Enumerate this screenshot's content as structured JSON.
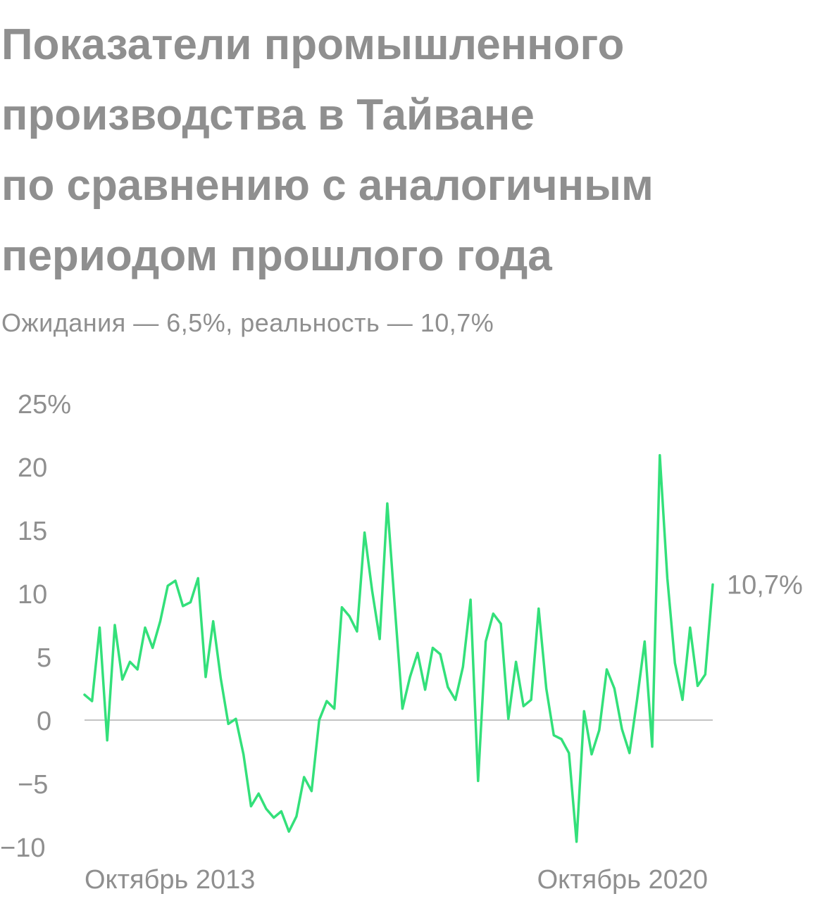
{
  "header": {
    "title_lines": [
      "Показатели промышленного",
      "производства в Тайване",
      "по сравнению с аналогичным",
      "периодом прошлого года"
    ],
    "subtitle": "Ожидания — 6,5%, реальность — 10,7%"
  },
  "colors": {
    "line": "#33e07a",
    "text": "#8f8f8f",
    "zero_line": "#c4c4c4"
  },
  "chart_data": {
    "type": "line",
    "title": "Показатели промышленного производства в Тайване по сравнению с аналогичным периодом прошлого года",
    "subtitle": "Ожидания — 6,5%, реальность — 10,7%",
    "xlabel": "",
    "ylabel": "",
    "ylim": [
      -10,
      25
    ],
    "yticks": [
      25,
      20,
      15,
      10,
      5,
      0,
      -5,
      -10
    ],
    "ytick_labels": [
      "25%",
      "20",
      "15",
      "10",
      "5",
      "0",
      "−5",
      "−10"
    ],
    "x_tick_labels": [
      "Октябрь 2013",
      "Октябрь 2020"
    ],
    "grid": false,
    "zero_line": true,
    "end_label": "10,7%",
    "series": [
      {
        "values": [
          2.0,
          1.5,
          7.3,
          -1.6,
          7.5,
          3.2,
          4.6,
          4.0,
          7.3,
          5.7,
          7.8,
          10.6,
          11.0,
          9.0,
          9.3,
          11.2,
          3.4,
          7.8,
          3.3,
          -0.3,
          0.1,
          -2.7,
          -6.8,
          -5.8,
          -7.0,
          -7.7,
          -7.2,
          -8.8,
          -7.6,
          -4.5,
          -5.6,
          0.0,
          1.5,
          0.9,
          8.9,
          8.2,
          7.0,
          14.8,
          10.2,
          6.4,
          17.1,
          8.9,
          0.9,
          3.4,
          5.3,
          2.4,
          5.7,
          5.2,
          2.6,
          1.6,
          4.2,
          9.5,
          -4.8,
          6.2,
          8.4,
          7.6,
          0.1,
          4.6,
          1.1,
          1.6,
          8.8,
          2.5,
          -1.2,
          -1.5,
          -2.6,
          -9.6,
          0.7,
          -2.7,
          -0.8,
          4.0,
          2.5,
          -0.7,
          -2.6,
          1.6,
          6.2,
          -2.1,
          20.9,
          11.2,
          4.5,
          1.6,
          7.3,
          2.7,
          3.6,
          10.7
        ]
      }
    ]
  }
}
